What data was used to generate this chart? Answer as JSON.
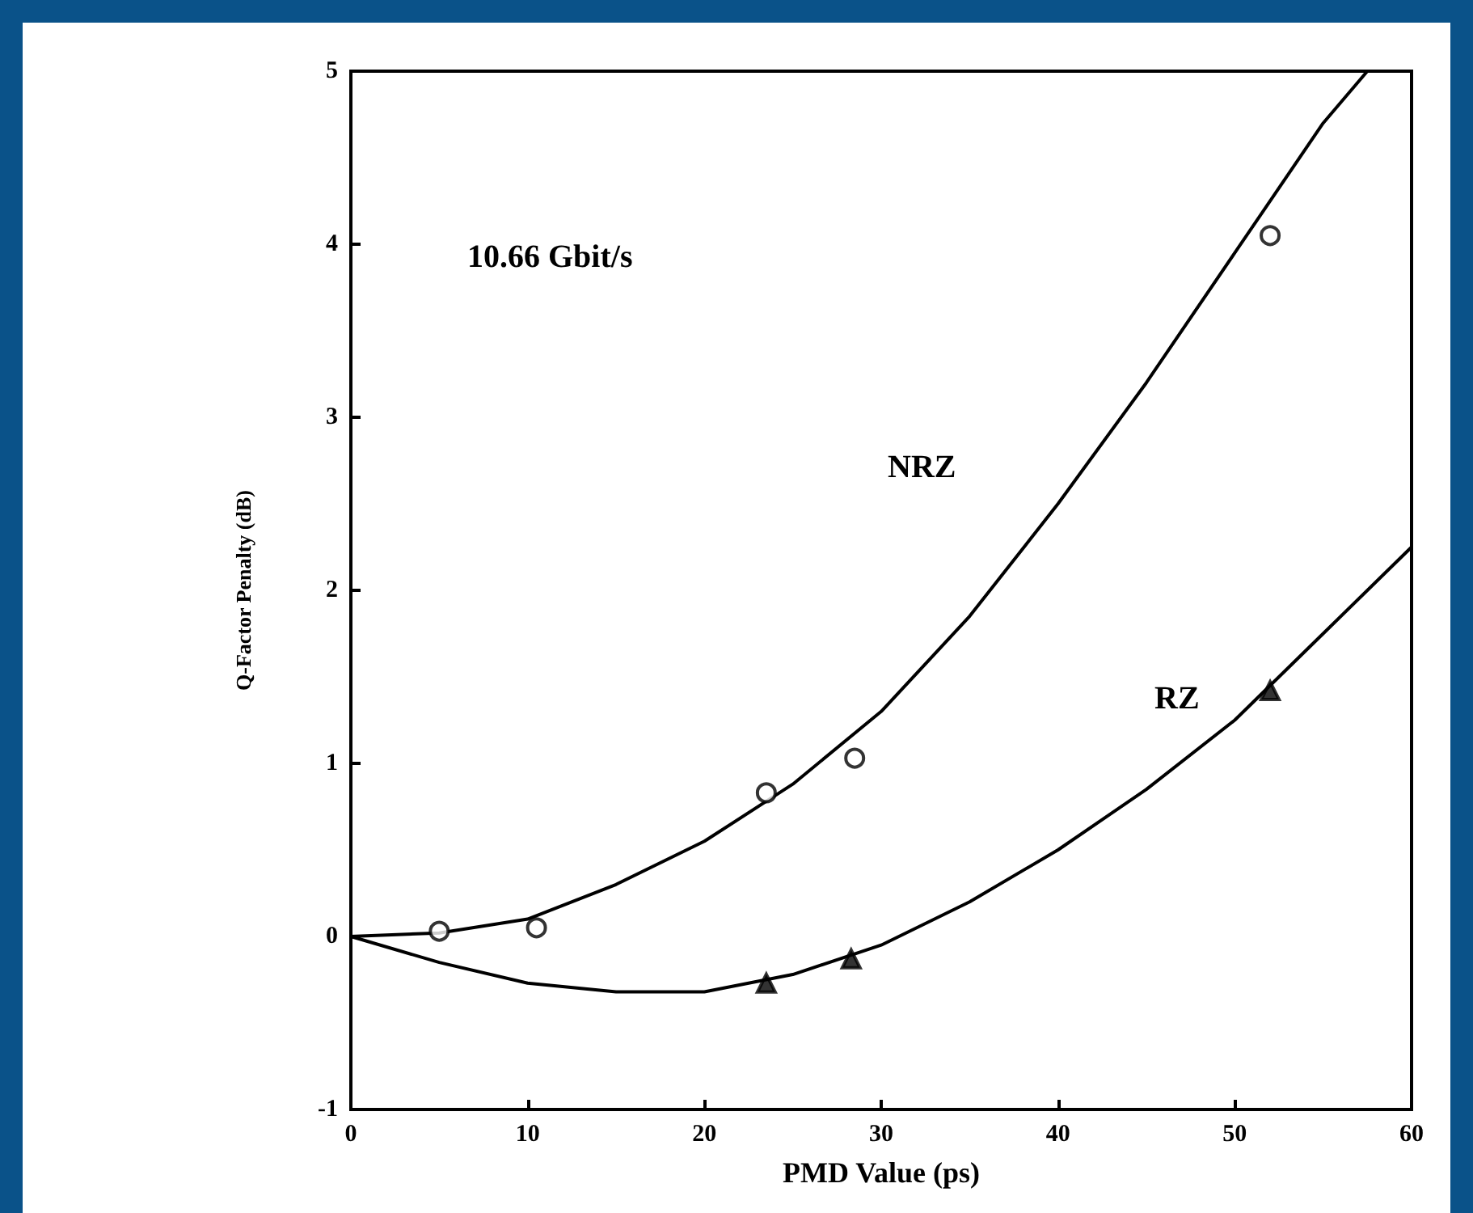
{
  "chart_data": {
    "type": "scatter",
    "xlabel": "PMD Value (ps)",
    "ylabel": "Q-Factor Penalty (dB)",
    "xlim": [
      0,
      60
    ],
    "xticks": [
      0,
      10,
      20,
      30,
      40,
      50,
      60
    ],
    "ylim": [
      -1,
      5
    ],
    "yticks": [
      -1,
      0,
      1,
      2,
      3,
      4,
      5
    ],
    "grid": false,
    "annotations": [
      "10.66 Gbit/s",
      "NRZ",
      "RZ"
    ],
    "series": [
      {
        "type": "line",
        "marker": "none",
        "color": "#000000",
        "x": [
          0,
          5,
          10,
          15,
          20,
          25,
          30,
          35,
          40,
          45,
          50,
          55,
          57.5
        ],
        "values": [
          0,
          0.02,
          0.1,
          0.3,
          0.55,
          0.88,
          1.3,
          1.85,
          2.5,
          3.2,
          3.95,
          4.7,
          5
        ]
      },
      {
        "type": "line",
        "marker": "none",
        "color": "#000000",
        "x": [
          0,
          5,
          10,
          15,
          20,
          25,
          30,
          35,
          40,
          45,
          50,
          55,
          60
        ],
        "values": [
          0,
          -0.15,
          -0.27,
          -0.32,
          -0.32,
          -0.22,
          -0.05,
          0.2,
          0.5,
          0.85,
          1.25,
          1.75,
          2.25
        ]
      },
      {
        "marker": "circle",
        "color": "#000000",
        "x": [
          5,
          10.5,
          23.5,
          28.5,
          52
        ],
        "values": [
          0.03,
          0.05,
          0.83,
          1.03,
          4.05
        ]
      },
      {
        "marker": "triangle",
        "color": "#000000",
        "x": [
          23.5,
          28.3,
          52
        ],
        "values": [
          -0.27,
          -0.13,
          1.42
        ]
      }
    ]
  }
}
